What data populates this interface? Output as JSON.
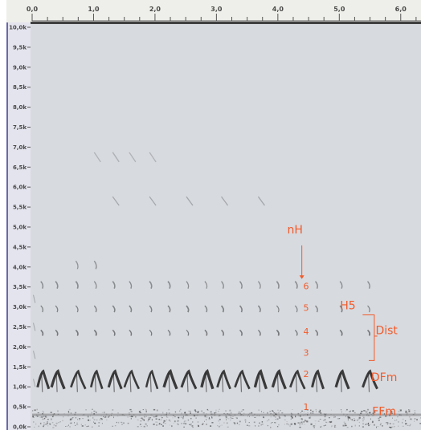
{
  "chart_data": {
    "type": "spectrogram",
    "title": "",
    "xlabel": "",
    "ylabel": "",
    "xlim": [
      0.0,
      6.33
    ],
    "ylim": [
      0,
      10000
    ],
    "x_ticks": [
      {
        "value": 0.0,
        "label": "0,0"
      },
      {
        "value": 1.0,
        "label": "1,0"
      },
      {
        "value": 2.0,
        "label": "2,0"
      },
      {
        "value": 3.0,
        "label": "3,0"
      },
      {
        "value": 4.0,
        "label": "4,0"
      },
      {
        "value": 5.0,
        "label": "5,0"
      },
      {
        "value": 6.0,
        "label": "6,0"
      }
    ],
    "y_ticks": [
      {
        "value": 10000,
        "label": "10,0k"
      },
      {
        "value": 9500,
        "label": "9,5k"
      },
      {
        "value": 9000,
        "label": "9,0k"
      },
      {
        "value": 8500,
        "label": "8,5k"
      },
      {
        "value": 8000,
        "label": "8,0k"
      },
      {
        "value": 7500,
        "label": "7,5k"
      },
      {
        "value": 7000,
        "label": "7,0k"
      },
      {
        "value": 6500,
        "label": "6,5k"
      },
      {
        "value": 6000,
        "label": "6,0k"
      },
      {
        "value": 5500,
        "label": "5,5k"
      },
      {
        "value": 5000,
        "label": "5,0k"
      },
      {
        "value": 4500,
        "label": "4,5k"
      },
      {
        "value": 4000,
        "label": "4,0k"
      },
      {
        "value": 3500,
        "label": "3,5k"
      },
      {
        "value": 3000,
        "label": "3,0k"
      },
      {
        "value": 2500,
        "label": "2,5k"
      },
      {
        "value": 2000,
        "label": "2,0k"
      },
      {
        "value": 1500,
        "label": "1,5k"
      },
      {
        "value": 1000,
        "label": "1,0k"
      },
      {
        "value": 500,
        "label": "0,5k"
      },
      {
        "value": 0,
        "label": "0,0k"
      }
    ],
    "calls_time_s": [
      0.18,
      0.42,
      0.75,
      1.05,
      1.35,
      1.62,
      1.95,
      2.25,
      2.55,
      2.85,
      3.12,
      3.42,
      3.72,
      4.02,
      4.32,
      4.65,
      5.05,
      5.5
    ],
    "fundamental_hz": 1150,
    "harmonics_hz": [
      2350,
      2950,
      3550,
      4050,
      5650,
      6750
    ],
    "background_color": "#d7dadf",
    "trace_color": "#2b2b2b",
    "annotation_color": "#f25b2a",
    "annotations": [
      {
        "text": "nH",
        "x": 4.28,
        "y": 4840
      },
      {
        "text": "6",
        "x": 4.46,
        "y": 3440
      },
      {
        "text": "5",
        "x": 4.46,
        "y": 2900
      },
      {
        "text": "4",
        "x": 4.46,
        "y": 2310
      },
      {
        "text": "3",
        "x": 4.46,
        "y": 1780
      },
      {
        "text": "2",
        "x": 4.46,
        "y": 1240
      },
      {
        "text": "1",
        "x": 4.46,
        "y": 420
      },
      {
        "text": "H5",
        "x": 5.14,
        "y": 2940
      },
      {
        "text": "Dist",
        "x": 5.77,
        "y": 2320
      },
      {
        "text": "DFm",
        "x": 5.73,
        "y": 1140
      },
      {
        "text": "FFm",
        "x": 5.73,
        "y": 290
      }
    ]
  }
}
